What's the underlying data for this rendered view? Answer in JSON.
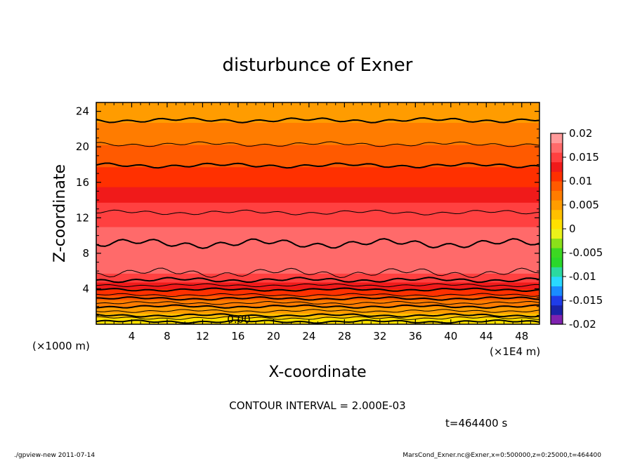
{
  "chart_data": {
    "type": "heatmap",
    "title": "disturbunce of Exner",
    "xlabel": "X-coordinate",
    "ylabel": "Z-coordinate",
    "x_unit_note": "(×1000 m)",
    "x_scale_note": "(×1E4 m)",
    "xlim": [
      0,
      50
    ],
    "ylim": [
      0,
      25
    ],
    "x_ticks": [
      4,
      8,
      12,
      16,
      20,
      24,
      28,
      32,
      36,
      40,
      44,
      48
    ],
    "y_ticks": [
      4,
      8,
      12,
      16,
      20,
      24
    ],
    "contour_label": "0.00",
    "colorbar": {
      "ticks": [
        "0.02",
        "0.015",
        "0.01",
        "0.005",
        "0",
        "-0.005",
        "-0.01",
        "-0.015",
        "-0.02"
      ],
      "range": [
        -0.02,
        0.02
      ],
      "colors": [
        "#7f22b0",
        "#1a22a8",
        "#1f3ce8",
        "#1a8cff",
        "#29d9ff",
        "#2bd9a0",
        "#2ad82a",
        "#3cd822",
        "#8be01a",
        "#eaf21a",
        "#ffe000",
        "#ffc000",
        "#ff9c00",
        "#ff7c00",
        "#ff5a00",
        "#ff3000",
        "#f01a1a",
        "#ff4040",
        "#ff6a6a",
        "#ff9a9a"
      ]
    },
    "profile": {
      "z": [
        0,
        0.5,
        1,
        1.5,
        2,
        2.5,
        3,
        3.5,
        4,
        4.5,
        5,
        5.5,
        6,
        7,
        8,
        9,
        10,
        11,
        12,
        13,
        14,
        15,
        16,
        17,
        18,
        19,
        20,
        21,
        22,
        23,
        24,
        25
      ],
      "value": [
        0.0002,
        0.0015,
        0.003,
        0.0045,
        0.006,
        0.0075,
        0.009,
        0.0105,
        0.012,
        0.0135,
        0.015,
        0.0158,
        0.0163,
        0.0172,
        0.0178,
        0.0174,
        0.0165,
        0.016,
        0.0155,
        0.0145,
        0.0138,
        0.0125,
        0.0115,
        0.0108,
        0.0098,
        0.009,
        0.0082,
        0.0075,
        0.0066,
        0.0058,
        0.005,
        0.0045
      ]
    },
    "contour_levels_z": [
      0.3,
      0.7,
      1.0,
      1.5,
      2.0,
      2.4,
      2.9,
      3.3,
      3.9,
      4.4,
      5.0,
      5.8,
      9.1,
      12.6,
      17.9,
      20.3,
      23.0
    ],
    "contour_interval_text": "CONTOUR INTERVAL = 2.000E-03",
    "time_label": "t=464400 s"
  },
  "footer": {
    "left": "./gpview-new   2011-07-14",
    "right": "MarsCond_Exner.nc@Exner,x=0:500000,z=0:25000,t=464400"
  }
}
